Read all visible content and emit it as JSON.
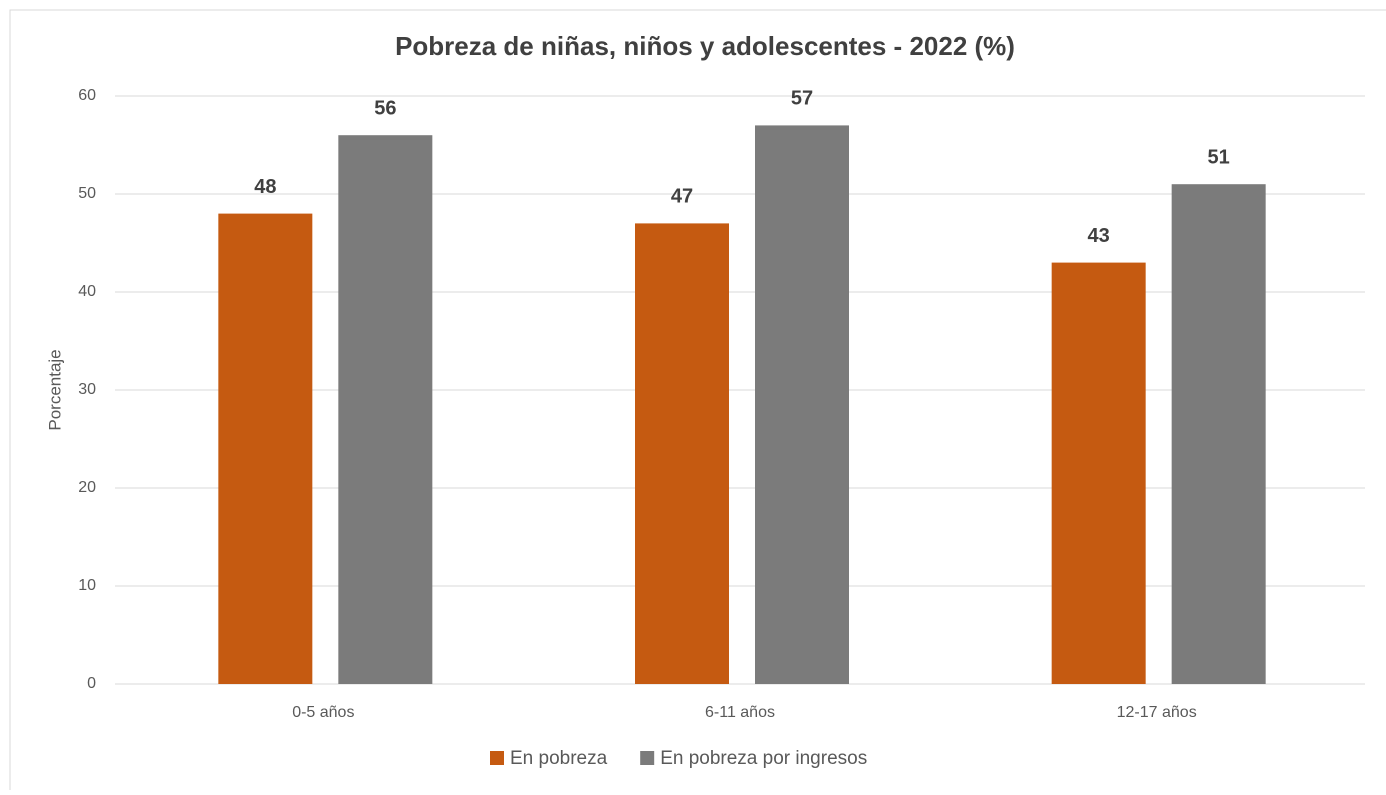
{
  "chart_data": {
    "type": "bar",
    "title": "Pobreza de niñas, niños y adolescentes - 2022 (%)",
    "y_label": "Porcentaje",
    "categories": [
      "0-5 años",
      "6-11 años",
      "12-17 años"
    ],
    "series": [
      {
        "name": "En pobreza",
        "color": "#c55a11",
        "values": [
          48,
          47,
          43
        ]
      },
      {
        "name": "En pobreza por ingresos",
        "color": "#7b7b7b",
        "values": [
          56,
          57,
          51
        ]
      }
    ],
    "ylim": [
      0,
      60
    ],
    "yticks": [
      0,
      10,
      20,
      30,
      40,
      50,
      60
    ],
    "grid": true,
    "legend": "bottom"
  }
}
